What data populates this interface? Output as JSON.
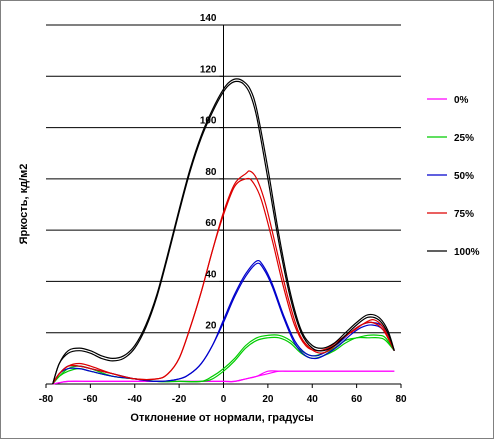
{
  "chart_data": {
    "type": "line",
    "title": "",
    "xlabel": "Отклонение от нормали, градусы",
    "ylabel": "Яркость, кд/м2",
    "xlim": [
      -80,
      80
    ],
    "ylim": [
      0,
      140
    ],
    "x_ticks": [
      "-80",
      "-60",
      "-40",
      "-20",
      "0",
      "20",
      "40",
      "60",
      "80"
    ],
    "y_ticks": [
      "20",
      "40",
      "60",
      "80",
      "100",
      "120",
      "140"
    ],
    "grid": "horizontal",
    "legend_position": "right",
    "series": [
      {
        "name": "0%",
        "color": "#ff00ff",
        "curves": [
          [
            [
              -77,
              0
            ],
            [
              -70,
              1
            ],
            [
              -60,
              1
            ],
            [
              -50,
              1
            ],
            [
              -40,
              1
            ],
            [
              -30,
              1
            ],
            [
              -20,
              1
            ],
            [
              -10,
              1
            ],
            [
              0,
              1
            ],
            [
              5,
              1
            ],
            [
              10,
              2
            ],
            [
              15,
              3
            ],
            [
              20,
              4
            ],
            [
              25,
              5
            ],
            [
              30,
              5
            ],
            [
              40,
              5
            ],
            [
              50,
              5
            ],
            [
              60,
              5
            ],
            [
              70,
              5
            ],
            [
              75,
              5
            ],
            [
              77,
              5
            ]
          ],
          [
            [
              -77,
              0
            ],
            [
              -70,
              1
            ],
            [
              -60,
              1
            ],
            [
              -50,
              1
            ],
            [
              -40,
              1
            ],
            [
              -30,
              1
            ],
            [
              -20,
              1
            ],
            [
              -10,
              1
            ],
            [
              0,
              1
            ],
            [
              5,
              1
            ],
            [
              10,
              2
            ],
            [
              15,
              3
            ],
            [
              20,
              5
            ],
            [
              25,
              5
            ],
            [
              30,
              5
            ],
            [
              40,
              5
            ],
            [
              50,
              5
            ],
            [
              60,
              5
            ],
            [
              70,
              5
            ],
            [
              75,
              5
            ],
            [
              77,
              5
            ]
          ]
        ]
      },
      {
        "name": "25%",
        "color": "#00cc00",
        "curves": [
          [
            [
              -77,
              0
            ],
            [
              -74,
              3
            ],
            [
              -70,
              5
            ],
            [
              -65,
              6
            ],
            [
              -60,
              5
            ],
            [
              -50,
              3
            ],
            [
              -40,
              2
            ],
            [
              -30,
              1
            ],
            [
              -20,
              1
            ],
            [
              -10,
              1
            ],
            [
              -5,
              2
            ],
            [
              0,
              5
            ],
            [
              5,
              9
            ],
            [
              10,
              14
            ],
            [
              15,
              17
            ],
            [
              20,
              18
            ],
            [
              25,
              18
            ],
            [
              30,
              16
            ],
            [
              35,
              12
            ],
            [
              40,
              10
            ],
            [
              45,
              11
            ],
            [
              50,
              13
            ],
            [
              55,
              16
            ],
            [
              60,
              18
            ],
            [
              65,
              18
            ],
            [
              70,
              18
            ],
            [
              73,
              17
            ],
            [
              77,
              13
            ]
          ],
          [
            [
              -77,
              0
            ],
            [
              -74,
              3
            ],
            [
              -70,
              6
            ],
            [
              -65,
              7
            ],
            [
              -60,
              6
            ],
            [
              -50,
              3
            ],
            [
              -40,
              2
            ],
            [
              -30,
              1
            ],
            [
              -20,
              1
            ],
            [
              -10,
              1
            ],
            [
              -5,
              3
            ],
            [
              0,
              6
            ],
            [
              5,
              10
            ],
            [
              10,
              15
            ],
            [
              15,
              18
            ],
            [
              20,
              19
            ],
            [
              25,
              19
            ],
            [
              30,
              17
            ],
            [
              35,
              13
            ],
            [
              40,
              11
            ],
            [
              45,
              12
            ],
            [
              50,
              14
            ],
            [
              55,
              17
            ],
            [
              60,
              18
            ],
            [
              65,
              19
            ],
            [
              70,
              19
            ],
            [
              73,
              18
            ],
            [
              77,
              13
            ]
          ]
        ]
      },
      {
        "name": "50%",
        "color": "#0000cc",
        "curves": [
          [
            [
              -77,
              0
            ],
            [
              -74,
              4
            ],
            [
              -70,
              6
            ],
            [
              -65,
              6
            ],
            [
              -60,
              5
            ],
            [
              -50,
              3
            ],
            [
              -40,
              2
            ],
            [
              -30,
              1
            ],
            [
              -20,
              2
            ],
            [
              -15,
              4
            ],
            [
              -10,
              8
            ],
            [
              -5,
              15
            ],
            [
              0,
              24
            ],
            [
              5,
              34
            ],
            [
              10,
              42
            ],
            [
              15,
              47
            ],
            [
              18,
              45
            ],
            [
              22,
              38
            ],
            [
              27,
              26
            ],
            [
              32,
              16
            ],
            [
              37,
              11
            ],
            [
              42,
              10
            ],
            [
              47,
              12
            ],
            [
              52,
              15
            ],
            [
              57,
              19
            ],
            [
              62,
              22
            ],
            [
              67,
              23
            ],
            [
              72,
              21
            ],
            [
              77,
              13
            ]
          ],
          [
            [
              -77,
              0
            ],
            [
              -74,
              4
            ],
            [
              -70,
              7
            ],
            [
              -65,
              7
            ],
            [
              -60,
              6
            ],
            [
              -50,
              4
            ],
            [
              -40,
              2
            ],
            [
              -30,
              1
            ],
            [
              -20,
              2
            ],
            [
              -15,
              4
            ],
            [
              -10,
              8
            ],
            [
              -5,
              15
            ],
            [
              0,
              25
            ],
            [
              5,
              35
            ],
            [
              10,
              43
            ],
            [
              15,
              48
            ],
            [
              18,
              46
            ],
            [
              22,
              39
            ],
            [
              27,
              27
            ],
            [
              32,
              17
            ],
            [
              37,
              12
            ],
            [
              42,
              11
            ],
            [
              47,
              13
            ],
            [
              52,
              16
            ],
            [
              57,
              20
            ],
            [
              62,
              23
            ],
            [
              67,
              24
            ],
            [
              72,
              22
            ],
            [
              77,
              13
            ]
          ]
        ]
      },
      {
        "name": "75%",
        "color": "#dd0000",
        "curves": [
          [
            [
              -77,
              0
            ],
            [
              -74,
              4
            ],
            [
              -70,
              7
            ],
            [
              -65,
              7
            ],
            [
              -60,
              6
            ],
            [
              -50,
              4
            ],
            [
              -40,
              2
            ],
            [
              -30,
              2
            ],
            [
              -25,
              4
            ],
            [
              -20,
              10
            ],
            [
              -15,
              22
            ],
            [
              -10,
              36
            ],
            [
              -5,
              52
            ],
            [
              0,
              66
            ],
            [
              5,
              77
            ],
            [
              10,
              80
            ],
            [
              13,
              79
            ],
            [
              17,
              72
            ],
            [
              22,
              56
            ],
            [
              27,
              38
            ],
            [
              32,
              23
            ],
            [
              37,
              15
            ],
            [
              42,
              13
            ],
            [
              47,
              14
            ],
            [
              52,
              17
            ],
            [
              57,
              20
            ],
            [
              62,
              23
            ],
            [
              67,
              24
            ],
            [
              72,
              21
            ],
            [
              77,
              13
            ]
          ],
          [
            [
              -77,
              0
            ],
            [
              -74,
              4
            ],
            [
              -70,
              7
            ],
            [
              -65,
              8
            ],
            [
              -60,
              7
            ],
            [
              -50,
              4
            ],
            [
              -40,
              2
            ],
            [
              -30,
              2
            ],
            [
              -25,
              4
            ],
            [
              -20,
              10
            ],
            [
              -15,
              22
            ],
            [
              -10,
              36
            ],
            [
              -5,
              52
            ],
            [
              0,
              67
            ],
            [
              5,
              78
            ],
            [
              10,
              82
            ],
            [
              12,
              83
            ],
            [
              15,
              80
            ],
            [
              19,
              70
            ],
            [
              24,
              52
            ],
            [
              29,
              34
            ],
            [
              34,
              20
            ],
            [
              39,
              14
            ],
            [
              44,
              12
            ],
            [
              49,
              14
            ],
            [
              54,
              18
            ],
            [
              59,
              21
            ],
            [
              64,
              24
            ],
            [
              68,
              25
            ],
            [
              72,
              22
            ],
            [
              77,
              13
            ]
          ]
        ]
      },
      {
        "name": "100%",
        "color": "#000000",
        "curves": [
          [
            [
              -77,
              0
            ],
            [
              -74,
              8
            ],
            [
              -70,
              12
            ],
            [
              -65,
              13
            ],
            [
              -60,
              12
            ],
            [
              -55,
              10
            ],
            [
              -50,
              9
            ],
            [
              -45,
              10
            ],
            [
              -40,
              14
            ],
            [
              -35,
              22
            ],
            [
              -30,
              34
            ],
            [
              -25,
              50
            ],
            [
              -20,
              67
            ],
            [
              -15,
              83
            ],
            [
              -10,
              96
            ],
            [
              -5,
              106
            ],
            [
              0,
              114
            ],
            [
              3,
              117
            ],
            [
              6,
              118
            ],
            [
              9,
              117
            ],
            [
              12,
              113
            ],
            [
              15,
              104
            ],
            [
              20,
              80
            ],
            [
              25,
              55
            ],
            [
              30,
              34
            ],
            [
              35,
              20
            ],
            [
              40,
              14
            ],
            [
              45,
              13
            ],
            [
              50,
              15
            ],
            [
              55,
              19
            ],
            [
              60,
              23
            ],
            [
              65,
              26
            ],
            [
              70,
              25
            ],
            [
              74,
              20
            ],
            [
              77,
              13
            ]
          ],
          [
            [
              -77,
              0
            ],
            [
              -74,
              8
            ],
            [
              -70,
              13
            ],
            [
              -65,
              14
            ],
            [
              -60,
              13
            ],
            [
              -55,
              11
            ],
            [
              -50,
              10
            ],
            [
              -45,
              11
            ],
            [
              -40,
              15
            ],
            [
              -35,
              23
            ],
            [
              -30,
              35
            ],
            [
              -25,
              51
            ],
            [
              -20,
              68
            ],
            [
              -15,
              84
            ],
            [
              -10,
              97
            ],
            [
              -5,
              107
            ],
            [
              0,
              115
            ],
            [
              3,
              118
            ],
            [
              6,
              119
            ],
            [
              9,
              118
            ],
            [
              12,
              115
            ],
            [
              15,
              107
            ],
            [
              20,
              84
            ],
            [
              25,
              58
            ],
            [
              30,
              36
            ],
            [
              35,
              21
            ],
            [
              40,
              15
            ],
            [
              45,
              14
            ],
            [
              50,
              16
            ],
            [
              55,
              20
            ],
            [
              60,
              24
            ],
            [
              65,
              27
            ],
            [
              70,
              26
            ],
            [
              74,
              21
            ],
            [
              77,
              13
            ]
          ]
        ]
      }
    ]
  }
}
